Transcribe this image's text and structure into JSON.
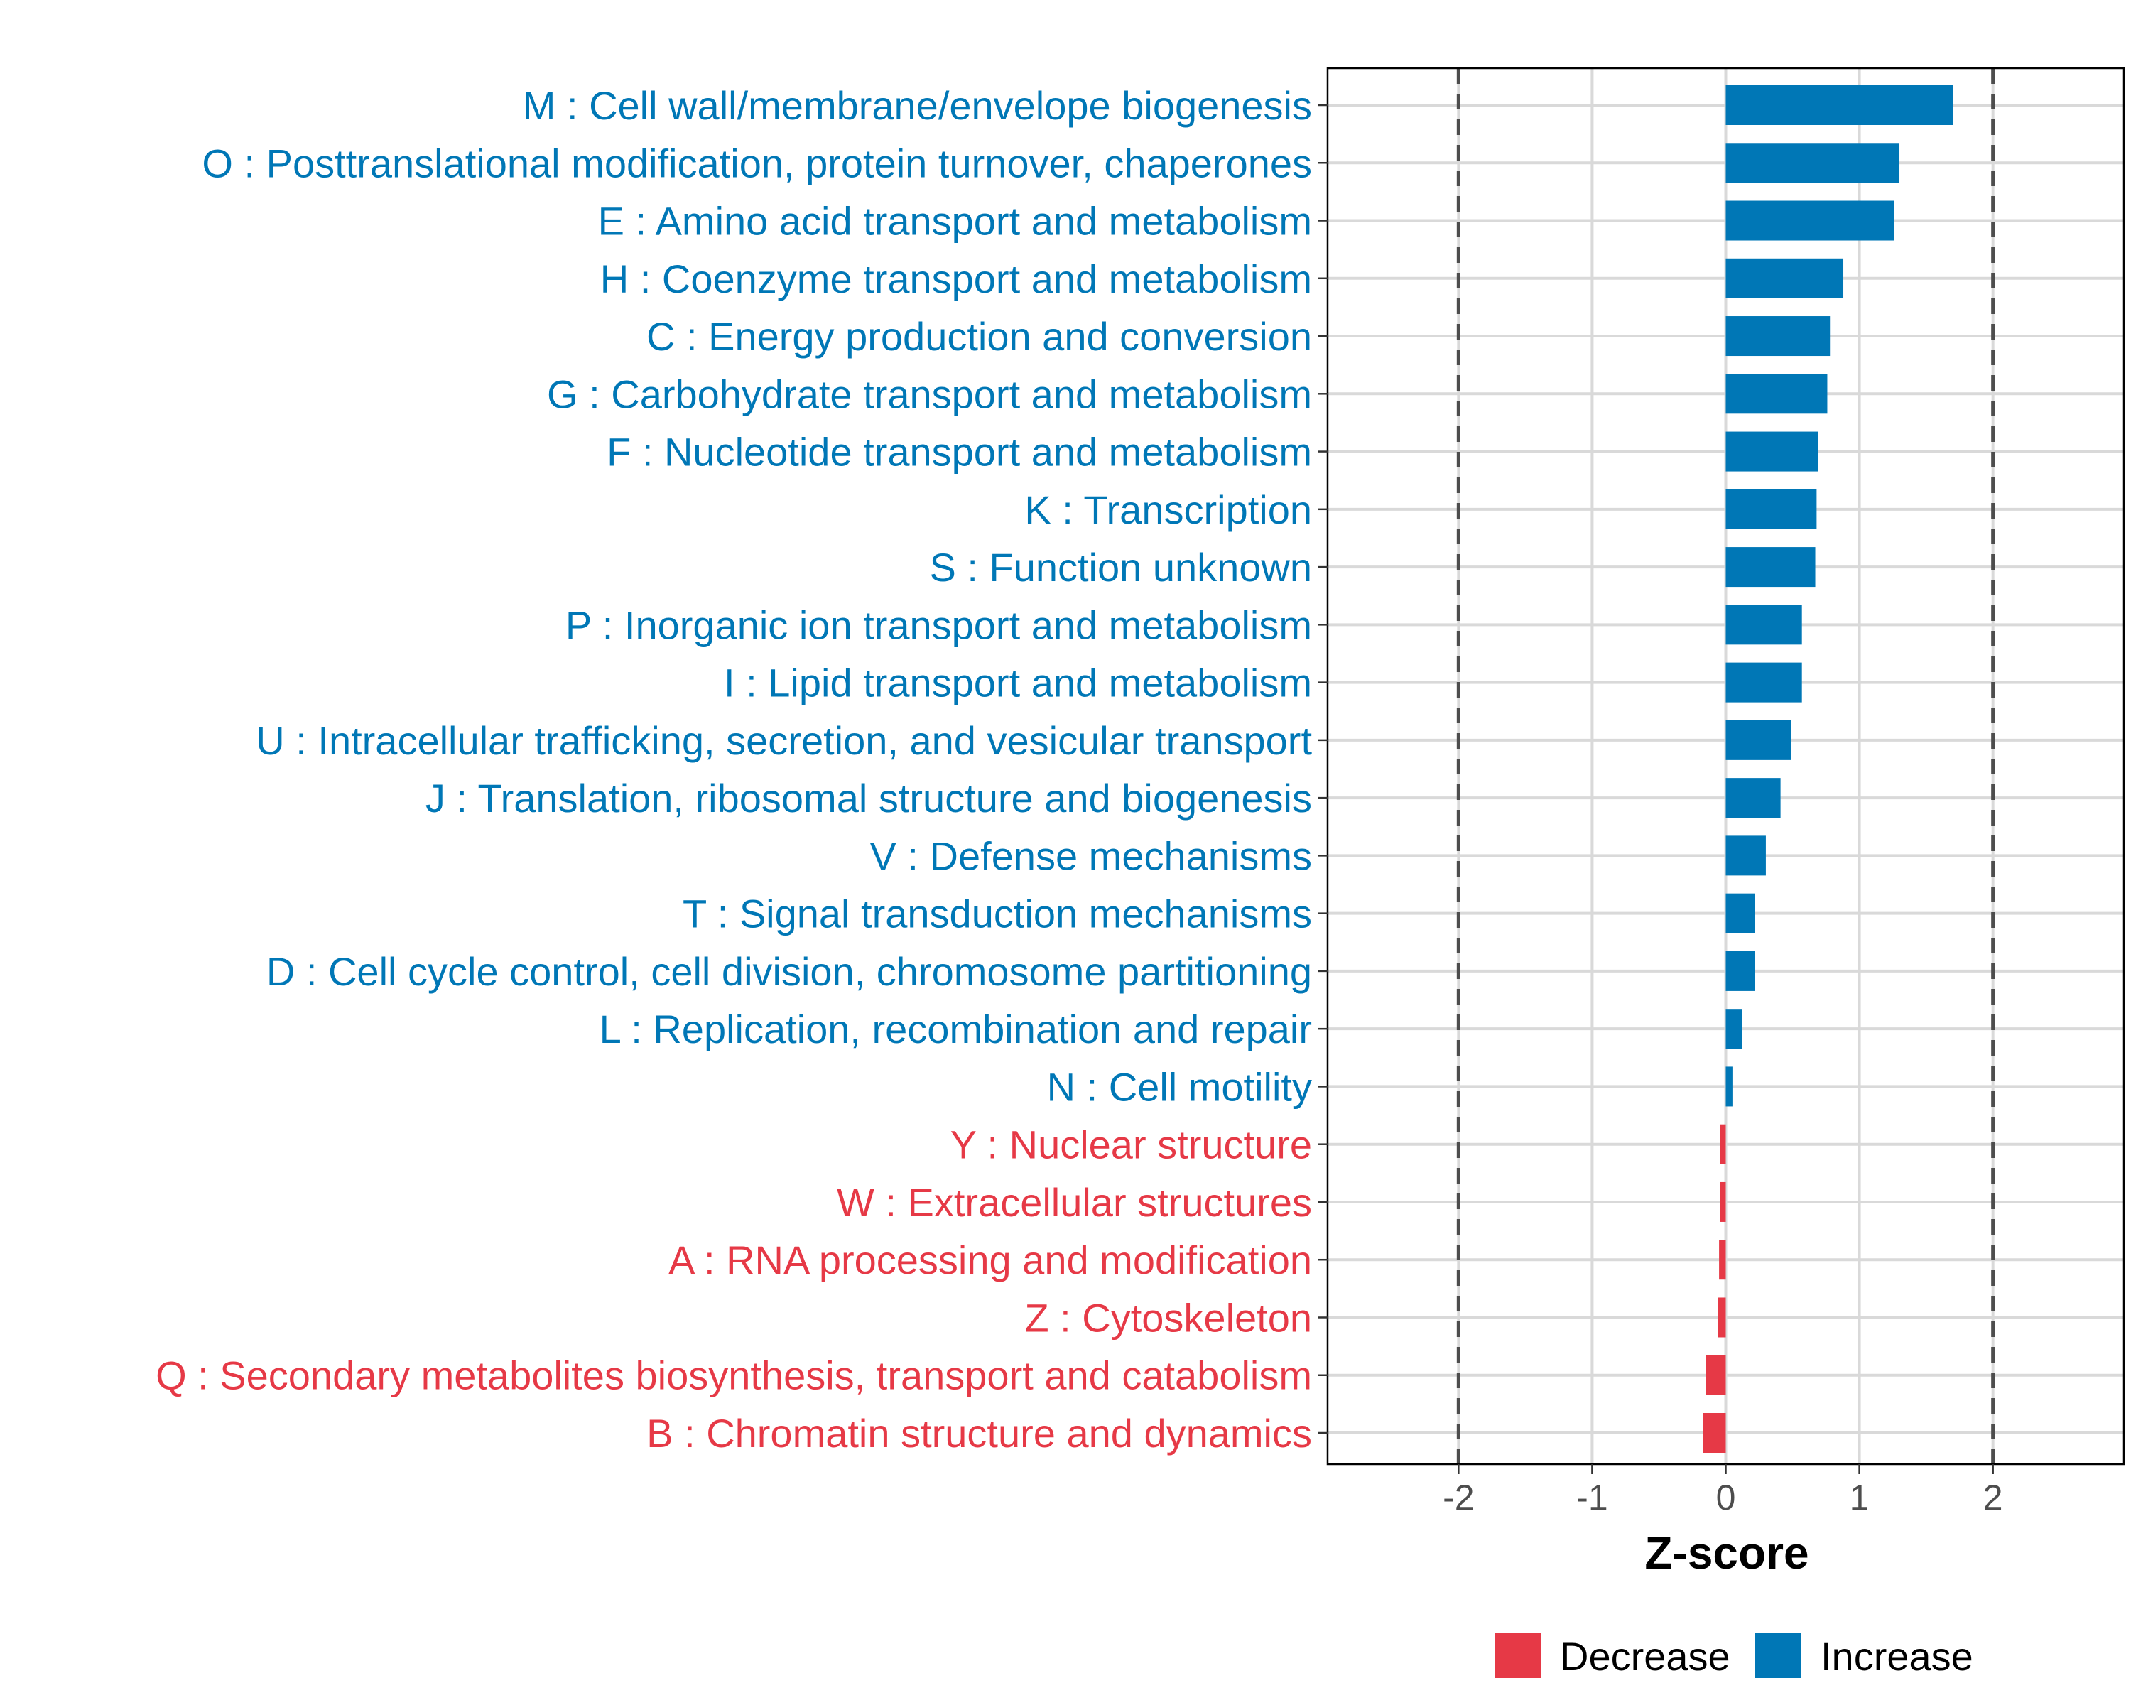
{
  "chart_data": {
    "type": "bar",
    "orientation": "horizontal",
    "title": "",
    "xlabel": "Z-score",
    "ylabel": "",
    "xlim": [
      -2.98,
      2.98
    ],
    "xticks": [
      -2,
      -1,
      0,
      1,
      2
    ],
    "xtick_labels": [
      "-2",
      "-1",
      "0",
      "1",
      "2"
    ],
    "reference_lines": [
      -2,
      2
    ],
    "grid": true,
    "categories": [
      "M : Cell wall/membrane/envelope biogenesis",
      "O : Posttranslational modification, protein turnover, chaperones",
      "E : Amino acid transport and metabolism",
      "H : Coenzyme transport and metabolism",
      "C : Energy production and conversion",
      "G : Carbohydrate transport and metabolism",
      "F : Nucleotide transport and metabolism",
      "K : Transcription",
      "S : Function unknown",
      "P : Inorganic ion transport and metabolism",
      "I : Lipid transport and metabolism",
      "U : Intracellular trafficking, secretion, and vesicular transport",
      "J : Translation, ribosomal structure and biogenesis",
      "V : Defense mechanisms",
      "T : Signal transduction mechanisms",
      "D : Cell cycle control, cell division, chromosome partitioning",
      "L : Replication, recombination and repair",
      "N : Cell motility",
      "Y : Nuclear structure",
      "W : Extracellular structures",
      "A : RNA processing and modification",
      "Z : Cytoskeleton",
      "Q : Secondary metabolites biosynthesis, transport and catabolism",
      "B : Chromatin structure and dynamics"
    ],
    "values": [
      1.7,
      1.3,
      1.26,
      0.88,
      0.78,
      0.76,
      0.69,
      0.68,
      0.67,
      0.57,
      0.57,
      0.49,
      0.41,
      0.3,
      0.22,
      0.22,
      0.12,
      0.05,
      -0.04,
      -0.04,
      -0.05,
      -0.06,
      -0.15,
      -0.17
    ],
    "groups": [
      "Increase",
      "Increase",
      "Increase",
      "Increase",
      "Increase",
      "Increase",
      "Increase",
      "Increase",
      "Increase",
      "Increase",
      "Increase",
      "Increase",
      "Increase",
      "Increase",
      "Increase",
      "Increase",
      "Increase",
      "Increase",
      "Decrease",
      "Decrease",
      "Decrease",
      "Decrease",
      "Decrease",
      "Decrease"
    ],
    "legend": {
      "placement": "bottom",
      "entries": [
        {
          "label": "Decrease",
          "color": "#E63946"
        },
        {
          "label": "Increase",
          "color": "#0077B6"
        }
      ]
    },
    "colors": {
      "Increase": "#0077B6",
      "Decrease": "#E63946"
    }
  }
}
